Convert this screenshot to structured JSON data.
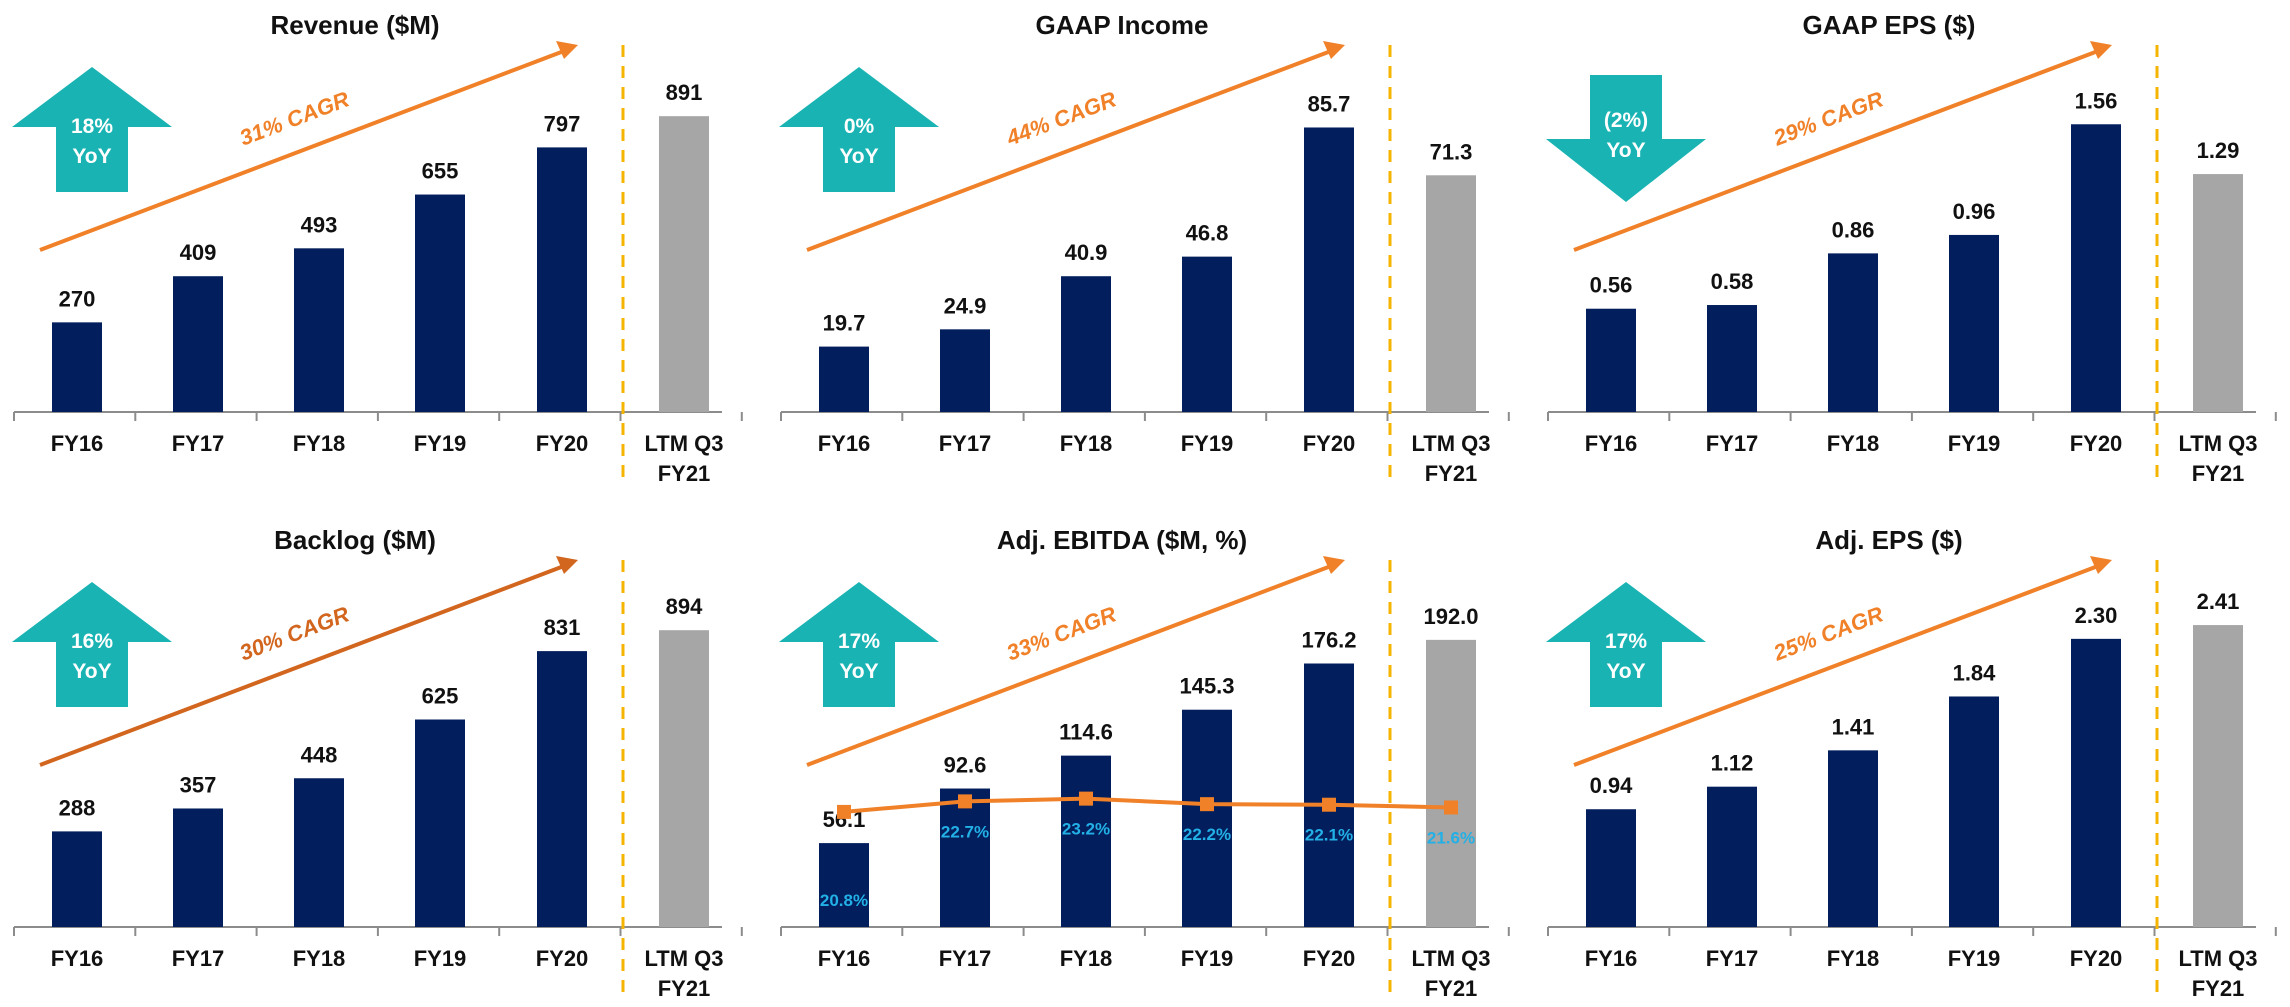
{
  "colors": {
    "bar": "#031E5C",
    "ltm_bar": "#A6A6A6",
    "cagr_arrow": "#F08128",
    "cagr_arrow_dark": "#D2661E",
    "yoy_badge": "#1AB3B3",
    "divider": "#F5B400",
    "axis": "#8C8C8C",
    "margin_label": "#22B0E6",
    "margin_line": "#F08128"
  },
  "chart_data": [
    {
      "type": "bar",
      "title": "Revenue ($M)",
      "categories": [
        "FY16",
        "FY17",
        "FY18",
        "FY19",
        "FY20",
        "LTM Q3\nFY21"
      ],
      "values": [
        270,
        409,
        493,
        655,
        797,
        891
      ],
      "value_labels": [
        "270",
        "409",
        "493",
        "655",
        "797",
        "891"
      ],
      "ylim": [
        0,
        1000
      ],
      "cagr_label": "31% CAGR",
      "yoy": {
        "value": "18%",
        "label": "YoY",
        "direction": "up"
      },
      "arrow_color": "cagr_arrow"
    },
    {
      "type": "bar",
      "title": "GAAP Income",
      "categories": [
        "FY16",
        "FY17",
        "FY18",
        "FY19",
        "FY20",
        "LTM Q3\nFY21"
      ],
      "values": [
        19.7,
        24.9,
        40.9,
        46.8,
        85.7,
        71.3
      ],
      "value_labels": [
        "19.7",
        "24.9",
        "40.9",
        "46.8",
        "85.7",
        "71.3"
      ],
      "ylim": [
        0,
        100
      ],
      "cagr_label": "44% CAGR",
      "yoy": {
        "value": "0%",
        "label": "YoY",
        "direction": "up"
      },
      "arrow_color": "cagr_arrow"
    },
    {
      "type": "bar",
      "title": "GAAP EPS ($)",
      "categories": [
        "FY16",
        "FY17",
        "FY18",
        "FY19",
        "FY20",
        "LTM Q3\nFY21"
      ],
      "values": [
        0.56,
        0.58,
        0.86,
        0.96,
        1.56,
        1.29
      ],
      "value_labels": [
        "0.56",
        "0.58",
        "0.86",
        "0.96",
        "1.56",
        "1.29"
      ],
      "ylim": [
        0,
        1.8
      ],
      "cagr_label": "29% CAGR",
      "yoy": {
        "value": "(2%)",
        "label": "YoY",
        "direction": "down"
      },
      "arrow_color": "cagr_arrow"
    },
    {
      "type": "bar",
      "title": "Backlog ($M)",
      "categories": [
        "FY16",
        "FY17",
        "FY18",
        "FY19",
        "FY20",
        "LTM Q3\nFY21"
      ],
      "values": [
        288,
        357,
        448,
        625,
        831,
        894
      ],
      "value_labels": [
        "288",
        "357",
        "448",
        "625",
        "831",
        "894"
      ],
      "ylim": [
        0,
        1000
      ],
      "cagr_label": "30% CAGR",
      "yoy": {
        "value": "16%",
        "label": "YoY",
        "direction": "up"
      },
      "arrow_color": "cagr_arrow_dark"
    },
    {
      "type": "bar",
      "title": "Adj. EBITDA ($M, %)",
      "categories": [
        "FY16",
        "FY17",
        "FY18",
        "FY19",
        "FY20",
        "LTM Q3\nFY21"
      ],
      "values": [
        56.1,
        92.6,
        114.6,
        145.3,
        176.2,
        192.0
      ],
      "value_labels": [
        "56.1",
        "92.6",
        "114.6",
        "145.3",
        "176.2",
        "192.0"
      ],
      "ylim": [
        0,
        222
      ],
      "cagr_label": "33% CAGR",
      "yoy": {
        "value": "17%",
        "label": "YoY",
        "direction": "up"
      },
      "arrow_color": "cagr_arrow",
      "margin_series": {
        "values": [
          20.8,
          22.7,
          23.2,
          22.2,
          22.1,
          21.6
        ],
        "labels": [
          "20.8%",
          "22.7%",
          "23.2%",
          "22.2%",
          "22.1%",
          "21.6%"
        ],
        "ylim": [
          0,
          60
        ]
      }
    },
    {
      "type": "bar",
      "title": "Adj. EPS ($)",
      "categories": [
        "FY16",
        "FY17",
        "FY18",
        "FY19",
        "FY20",
        "LTM Q3\nFY21"
      ],
      "values": [
        0.94,
        1.12,
        1.41,
        1.84,
        2.3,
        2.41
      ],
      "value_labels": [
        "0.94",
        "1.12",
        "1.41",
        "1.84",
        "2.30",
        "2.41"
      ],
      "ylim": [
        0,
        2.65
      ],
      "cagr_label": "25% CAGR",
      "yoy": {
        "value": "17%",
        "label": "YoY",
        "direction": "up"
      },
      "arrow_color": "cagr_arrow"
    }
  ]
}
